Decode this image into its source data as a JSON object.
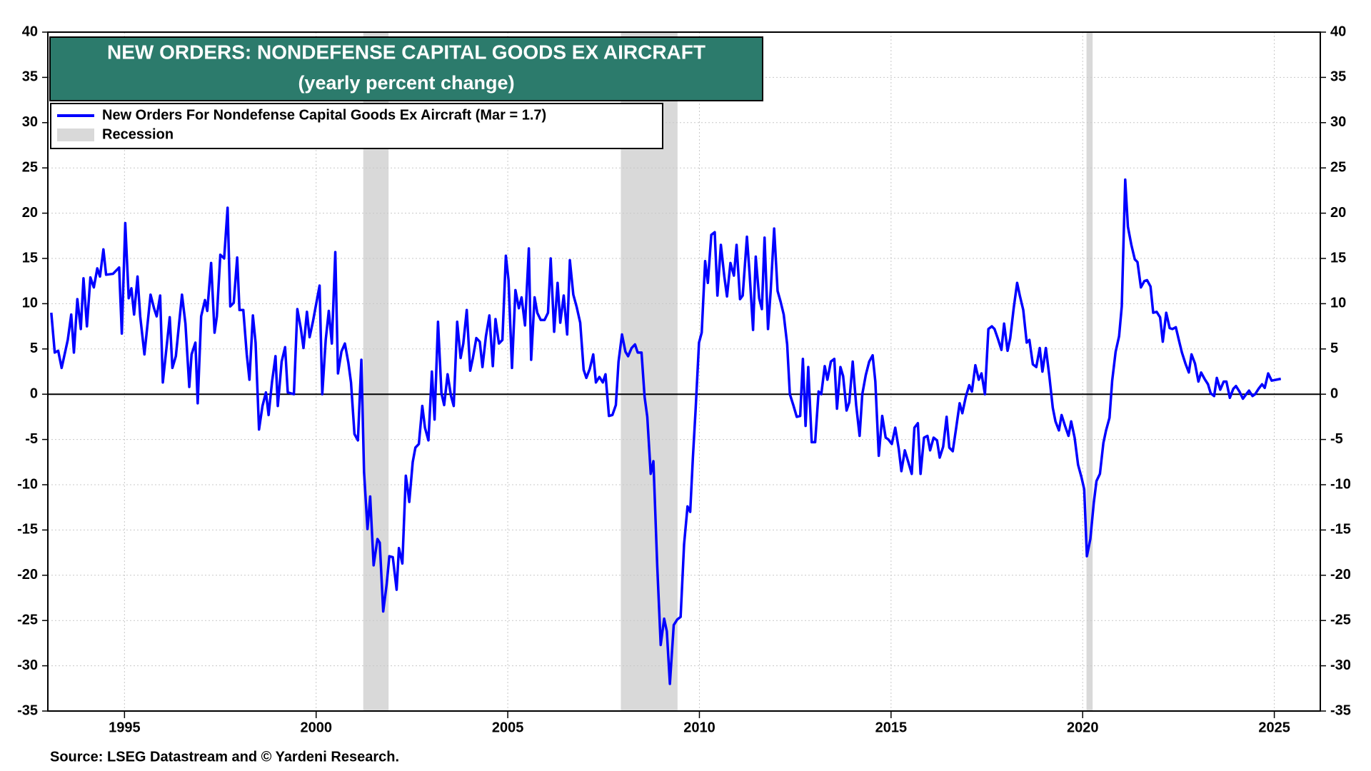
{
  "chart_data": {
    "type": "line",
    "title": "NEW ORDERS: NONDEFENSE CAPITAL GOODS EX AIRCRAFT",
    "subtitle": "(yearly percent change)",
    "source": "Source: LSEG Datastream and © Yardeni Research.",
    "x": [
      1993.09,
      1993.18,
      1993.27,
      1993.36,
      1993.52,
      1993.61,
      1993.68,
      1993.77,
      1993.86,
      1993.93,
      1994.02,
      1994.11,
      1994.2,
      1994.29,
      1994.36,
      1994.45,
      1994.52,
      1994.7,
      1994.86,
      1994.93,
      1995.02,
      1995.11,
      1995.18,
      1995.25,
      1995.34,
      1995.41,
      1995.52,
      1995.68,
      1995.77,
      1995.84,
      1995.93,
      1996,
      1996.18,
      1996.25,
      1996.34,
      1996.5,
      1996.59,
      1996.69,
      1996.75,
      1996.85,
      1996.91,
      1997,
      1997.1,
      1997.16,
      1997.26,
      1997.35,
      1997.41,
      1997.5,
      1997.6,
      1997.69,
      1997.76,
      1997.85,
      1997.94,
      1998,
      1998.1,
      1998.19,
      1998.26,
      1998.35,
      1998.42,
      1998.51,
      1998.6,
      1998.69,
      1998.76,
      1998.85,
      1998.94,
      1999,
      1999.1,
      1999.19,
      1999.26,
      1999.42,
      1999.51,
      1999.6,
      1999.67,
      1999.76,
      1999.83,
      1999.92,
      2000.09,
      2000.16,
      2000.25,
      2000.33,
      2000.41,
      2000.5,
      2000.57,
      2000.66,
      2000.75,
      2000.84,
      2000.91,
      2001,
      2001.09,
      2001.18,
      2001.25,
      2001.34,
      2001.41,
      2001.5,
      2001.6,
      2001.66,
      2001.75,
      2001.84,
      2001.91,
      2002,
      2002.1,
      2002.16,
      2002.25,
      2002.34,
      2002.39,
      2002.43,
      2002.52,
      2002.59,
      2002.68,
      2002.77,
      2002.84,
      2002.93,
      2003.02,
      2003.09,
      2003.18,
      2003.27,
      2003.34,
      2003.43,
      2003.52,
      2003.59,
      2003.68,
      2003.77,
      2003.84,
      2003.93,
      2004.02,
      2004.09,
      2004.18,
      2004.27,
      2004.34,
      2004.43,
      2004.52,
      2004.61,
      2004.68,
      2004.77,
      2004.86,
      2004.95,
      2005.02,
      2005.11,
      2005.2,
      2005.29,
      2005.36,
      2005.45,
      2005.55,
      2005.61,
      2005.7,
      2005.77,
      2005.86,
      2005.96,
      2006.05,
      2006.12,
      2006.21,
      2006.3,
      2006.37,
      2006.46,
      2006.55,
      2006.62,
      2006.71,
      2006.8,
      2006.89,
      2006.98,
      2007.05,
      2007.14,
      2007.23,
      2007.3,
      2007.39,
      2007.48,
      2007.55,
      2007.64,
      2007.73,
      2007.82,
      2007.89,
      2007.98,
      2008.07,
      2008.14,
      2008.23,
      2008.32,
      2008.39,
      2008.49,
      2008.57,
      2008.64,
      2008.73,
      2008.8,
      2008.9,
      2008.99,
      2009.08,
      2009.15,
      2009.23,
      2009.33,
      2009.42,
      2009.51,
      2009.6,
      2009.69,
      2009.76,
      2009.83,
      2009.9,
      2009.99,
      2010.06,
      2010.15,
      2010.22,
      2010.31,
      2010.4,
      2010.47,
      2010.56,
      2010.65,
      2010.72,
      2010.81,
      2010.9,
      2010.97,
      2011.06,
      2011.13,
      2011.24,
      2011.31,
      2011.4,
      2011.47,
      2011.56,
      2011.63,
      2011.7,
      2011.79,
      2011.86,
      2011.95,
      2012.04,
      2012.12,
      2012.2,
      2012.29,
      2012.36,
      2012.45,
      2012.54,
      2012.63,
      2012.7,
      2012.77,
      2012.84,
      2012.93,
      2013.02,
      2013.11,
      2013.18,
      2013.27,
      2013.34,
      2013.43,
      2013.52,
      2013.59,
      2013.68,
      2013.75,
      2013.84,
      2013.91,
      2014,
      2014.09,
      2014.18,
      2014.25,
      2014.34,
      2014.43,
      2014.52,
      2014.59,
      2014.68,
      2014.77,
      2014.86,
      2014.93,
      2015.02,
      2015.11,
      2015.2,
      2015.27,
      2015.36,
      2015.45,
      2015.54,
      2015.61,
      2015.7,
      2015.77,
      2015.86,
      2015.95,
      2016.02,
      2016.11,
      2016.2,
      2016.27,
      2016.36,
      2016.45,
      2016.52,
      2016.61,
      2016.7,
      2016.79,
      2016.86,
      2016.95,
      2017.04,
      2017.11,
      2017.2,
      2017.29,
      2017.36,
      2017.45,
      2017.54,
      2017.63,
      2017.7,
      2017.79,
      2017.88,
      2017.95,
      2018.04,
      2018.11,
      2018.2,
      2018.29,
      2018.36,
      2018.45,
      2018.54,
      2018.61,
      2018.7,
      2018.79,
      2018.88,
      2018.95,
      2019.04,
      2019.13,
      2019.22,
      2019.29,
      2019.38,
      2019.45,
      2019.54,
      2019.63,
      2019.7,
      2019.79,
      2019.88,
      2019.97,
      2020.04,
      2020.11,
      2020.2,
      2020.29,
      2020.36,
      2020.45,
      2020.54,
      2020.61,
      2020.7,
      2020.77,
      2020.86,
      2020.95,
      2021.02,
      2021.11,
      2021.18,
      2021.27,
      2021.36,
      2021.43,
      2021.52,
      2021.61,
      2021.68,
      2021.77,
      2021.84,
      2021.93,
      2022.02,
      2022.09,
      2022.18,
      2022.27,
      2022.34,
      2022.43,
      2022.52,
      2022.59,
      2022.68,
      2022.77,
      2022.84,
      2022.93,
      2023.02,
      2023.09,
      2023.18,
      2023.27,
      2023.34,
      2023.43,
      2023.5,
      2023.59,
      2023.68,
      2023.75,
      2023.84,
      2023.93,
      2024,
      2024.09,
      2024.18,
      2024.25,
      2024.34,
      2024.43,
      2024.5,
      2024.59,
      2024.68,
      2024.75,
      2024.84,
      2024.93,
      2025.17
    ],
    "series": [
      {
        "name": "New Orders For Nondefense Capital Goods Ex Aircraft (Mar = 1.7)",
        "color": "#0000ff",
        "values": [
          9,
          4.6,
          4.8,
          2.9,
          6,
          8.8,
          4.6,
          10.5,
          7.2,
          12.8,
          7.5,
          12.9,
          11.8,
          13.9,
          13,
          16,
          13.2,
          13.3,
          14,
          6.7,
          18.9,
          10.6,
          11.7,
          8.8,
          13,
          8.6,
          4.4,
          11,
          9.5,
          8.6,
          10.9,
          1.3,
          8.5,
          2.9,
          4.2,
          11,
          7.8,
          0.8,
          4.4,
          5.7,
          -1,
          8.6,
          10.4,
          9.2,
          14.5,
          6.8,
          8.6,
          15.4,
          15,
          20.6,
          9.7,
          10.1,
          15.1,
          9.3,
          9.3,
          4.4,
          1.6,
          8.7,
          5.7,
          -3.9,
          -1.3,
          0.2,
          -2.3,
          1.4,
          4.2,
          -1.3,
          3.6,
          5.2,
          0.2,
          0,
          9.4,
          7.3,
          5.1,
          9.1,
          6.3,
          8.1,
          12,
          0,
          6,
          9.2,
          5.6,
          15.7,
          2.3,
          4.7,
          5.6,
          3.5,
          1.3,
          -4.4,
          -5.1,
          3.8,
          -8.6,
          -14.9,
          -11.3,
          -18.9,
          -16,
          -16.4,
          -24,
          -21,
          -17.9,
          -18,
          -21.6,
          -17,
          -18.7,
          -9,
          -10.5,
          -11.9,
          -7.5,
          -5.9,
          -5.5,
          -1.3,
          -3.7,
          -5.1,
          2.5,
          -2.8,
          8,
          0.1,
          -1.2,
          2.2,
          -0.2,
          -1.3,
          8,
          4,
          5.6,
          9.3,
          2.6,
          4,
          6.2,
          5.8,
          3,
          6.4,
          8.7,
          3.1,
          8.3,
          5.6,
          6,
          15.3,
          12.6,
          2.9,
          11.5,
          9.5,
          10.7,
          7.6,
          16.1,
          3.8,
          10.7,
          9,
          8.2,
          8.2,
          9,
          15,
          6.9,
          12.3,
          7.9,
          10.9,
          6.6,
          14.8,
          11,
          9.6,
          7.9,
          2.7,
          1.8,
          2.8,
          4.4,
          1.3,
          1.9,
          1.3,
          2.2,
          -2.4,
          -2.3,
          -1.2,
          3.6,
          6.6,
          4.7,
          4.2,
          5.1,
          5.5,
          4.6,
          4.6,
          -0.3,
          -2.5,
          -8.8,
          -7.4,
          -19,
          -27.7,
          -24.8,
          -26.2,
          -32,
          -25.5,
          -24.9,
          -24.6,
          -16.6,
          -12.4,
          -13,
          -7,
          -1.8,
          5.7,
          6.8,
          14.7,
          12.3,
          17.6,
          17.9,
          10.9,
          16.5,
          13,
          10.8,
          14.5,
          13.1,
          16.5,
          10.5,
          10.9,
          17.4,
          13.3,
          7.1,
          15.2,
          10.6,
          9.4,
          17.3,
          7.2,
          11.4,
          18.3,
          11.4,
          10.2,
          8.8,
          5.5,
          0,
          -1.2,
          -2.5,
          -2.4,
          3.9,
          -3.5,
          3,
          -5.3,
          -5.3,
          0.3,
          0,
          3.1,
          1.6,
          3.6,
          3.9,
          -1.6,
          3,
          2,
          -1.8,
          -0.9,
          3.6,
          -1.2,
          -4.6,
          0,
          2.1,
          3.6,
          4.3,
          1.4,
          -6.8,
          -2.4,
          -4.8,
          -5,
          -5.5,
          -3.7,
          -6,
          -8.5,
          -6.2,
          -7.5,
          -8.8,
          -3.7,
          -3.2,
          -8.8,
          -4.8,
          -4.6,
          -6.2,
          -4.8,
          -5.1,
          -7,
          -5.8,
          -2.5,
          -5.9,
          -6.3,
          -3.7,
          -1,
          -2.1,
          -0.3,
          1,
          0.3,
          3.2,
          1.6,
          2.3,
          0,
          7.2,
          7.5,
          7.2,
          6.1,
          4.9,
          7.8,
          4.8,
          6.2,
          9.5,
          12.3,
          10.9,
          9.3,
          5.7,
          6,
          3.3,
          3,
          5.1,
          2.5,
          5.1,
          2,
          -1.5,
          -3,
          -4,
          -2.3,
          -3.5,
          -4.6,
          -3,
          -4.8,
          -7.8,
          -9.2,
          -10.5,
          -17.9,
          -16,
          -12,
          -9.6,
          -8.8,
          -5.4,
          -4,
          -2.6,
          1.5,
          4.7,
          6.4,
          9.7,
          23.7,
          18.5,
          16.5,
          14.9,
          14.6,
          11.8,
          12.5,
          12.6,
          11.9,
          9,
          9.1,
          8.5,
          5.8,
          9,
          7.3,
          7.2,
          7.4,
          5.8,
          4.6,
          3.4,
          2.4,
          4.4,
          3.4,
          1.4,
          2.4,
          1.7,
          1.1,
          0.1,
          -0.2,
          1.8,
          0.5,
          1.4,
          1.4,
          -0.4,
          0.6,
          0.9,
          0.3,
          -0.5,
          -0.1,
          0.4,
          -0.2,
          0,
          0.6,
          1.1,
          0.7,
          2.3,
          1.5,
          1.7
        ]
      }
    ],
    "recessions": {
      "name": "Recession",
      "color": "#d9d9d9",
      "spans": [
        [
          2001.23,
          2001.89
        ],
        [
          2007.95,
          2009.43
        ],
        [
          2020.1,
          2020.26
        ]
      ]
    },
    "xlim": [
      1993,
      2026.2
    ],
    "ylim": [
      -35,
      40
    ],
    "xticks": [
      1995,
      2000,
      2005,
      2010,
      2015,
      2020,
      2025
    ],
    "yticks": [
      -35,
      -30,
      -25,
      -20,
      -15,
      -10,
      -5,
      0,
      5,
      10,
      15,
      20,
      25,
      30,
      35,
      40
    ],
    "grid": true,
    "zero_line": true,
    "right_axis": true
  }
}
